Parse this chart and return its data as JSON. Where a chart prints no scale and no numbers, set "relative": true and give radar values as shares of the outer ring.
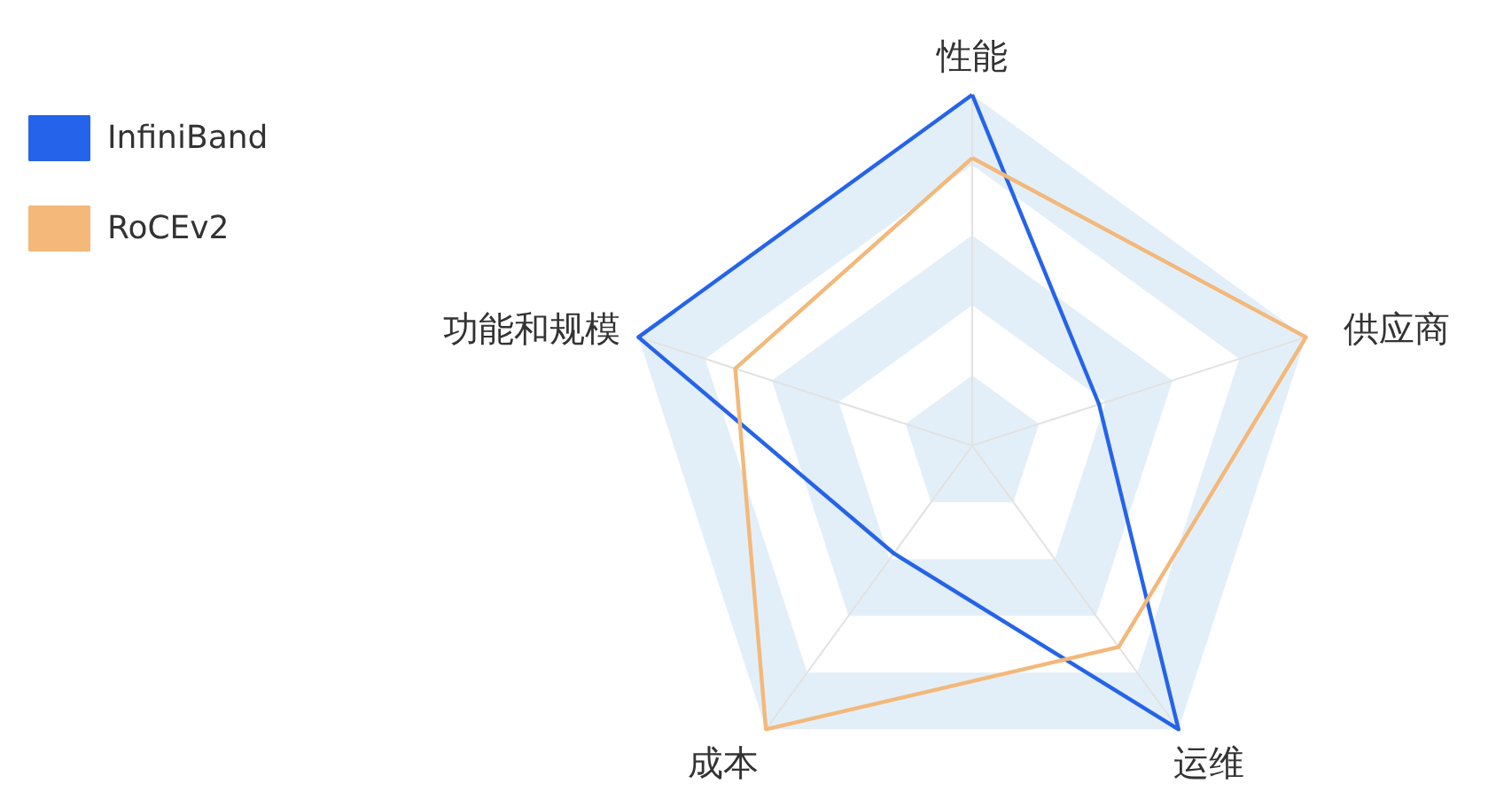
{
  "chart_data": {
    "type": "radar",
    "relative": true,
    "categories": [
      "性能",
      "供应商",
      "运维",
      "成本",
      "功能和规模"
    ],
    "series": [
      {
        "name": "InfiniBand",
        "color": "#2563eb",
        "values": [
          1,
          0.38,
          1,
          0.38,
          1
        ]
      },
      {
        "name": "RoCEv2",
        "color": "#f3b87a",
        "values": [
          0.82,
          1,
          0.71,
          1,
          0.71
        ]
      }
    ],
    "legend": "top left",
    "grid": true
  }
}
